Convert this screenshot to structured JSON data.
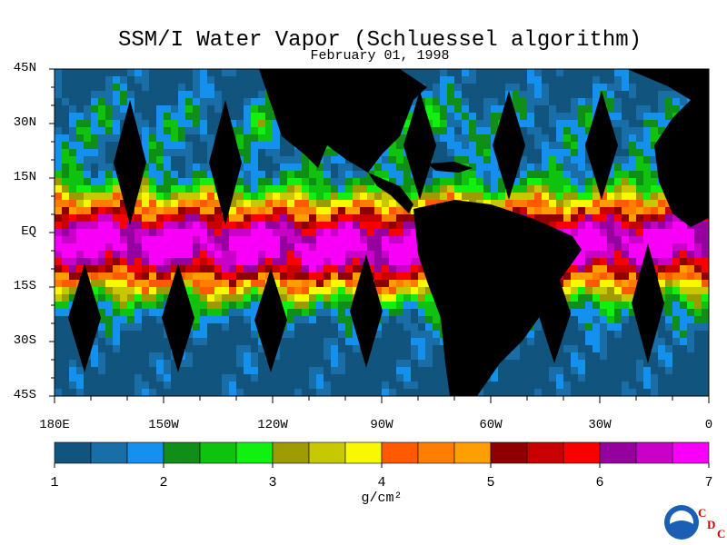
{
  "title": "SSM/I Water Vapor (Schluessel algorithm)",
  "subtitle": "February 01, 1998",
  "lat_labels": [
    "45N",
    "30N",
    "15N",
    "EQ",
    "15S",
    "30S",
    "45S"
  ],
  "lon_labels": [
    "180E",
    "150W",
    "120W",
    "90W",
    "60W",
    "30W",
    "0"
  ],
  "colorbar": {
    "ticks": [
      "1",
      "2",
      "3",
      "4",
      "5",
      "6",
      "7"
    ],
    "unit": "g/cm²",
    "colors": [
      "#11547e",
      "#1a6ea8",
      "#1490ee",
      "#0f8f18",
      "#0ec20e",
      "#11f011",
      "#9d9b00",
      "#c8c800",
      "#f8f800",
      "#ff5a00",
      "#ff7e00",
      "#ff9e00",
      "#8f0000",
      "#c80000",
      "#f80000",
      "#96009e",
      "#c800c8",
      "#f800f8"
    ]
  },
  "logo": {
    "noaa": "NOAA",
    "c": "C",
    "d": "D",
    "c2": "C"
  }
}
